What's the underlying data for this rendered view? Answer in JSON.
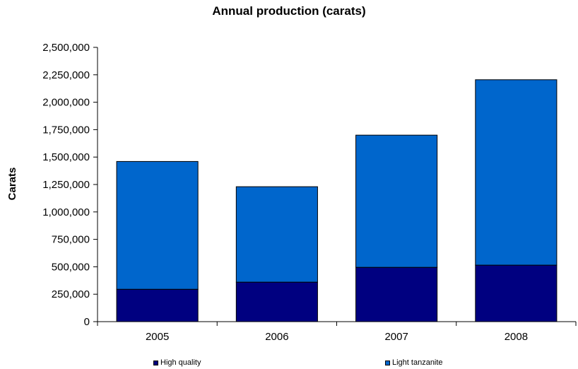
{
  "chart_data": {
    "type": "bar",
    "stacked": true,
    "title": "Annual production (carats)",
    "xlabel": "",
    "ylabel": "Carats",
    "categories": [
      "2005",
      "2006",
      "2007",
      "2008"
    ],
    "ylim": [
      0,
      2500000
    ],
    "yticks": [
      0,
      250000,
      500000,
      750000,
      1000000,
      1250000,
      1500000,
      1750000,
      2000000,
      2250000,
      2500000
    ],
    "ytick_labels": [
      "0",
      "250,000",
      "500,000",
      "750,000",
      "1,000,000",
      "1,250,000",
      "1,500,000",
      "1,750,000",
      "2,000,000",
      "2,250,000",
      "2,500,000"
    ],
    "grid": false,
    "legend_position": "bottom",
    "series": [
      {
        "name": "High quality",
        "color": "#000080",
        "values": [
          295000,
          360000,
          495000,
          515000
        ]
      },
      {
        "name": "Light tanzanite",
        "color": "#0066cc",
        "values": [
          1165000,
          870000,
          1205000,
          1690000
        ]
      }
    ]
  }
}
